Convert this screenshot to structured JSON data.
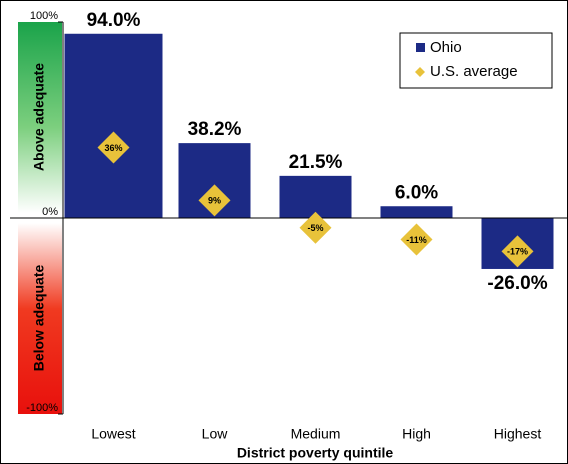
{
  "chart_data": {
    "type": "bar",
    "categories": [
      "Lowest",
      "Low",
      "Medium",
      "High",
      "Highest"
    ],
    "series": [
      {
        "name": "Ohio",
        "color": "#1c2a85",
        "values": [
          94.0,
          38.2,
          21.5,
          6.0,
          -26.0
        ],
        "value_labels": [
          "94.0%",
          "38.2%",
          "21.5%",
          "6.0%",
          "-26.0%"
        ]
      },
      {
        "name": "U.S. average",
        "color": "#e8c23a",
        "values": [
          36,
          9,
          -5,
          -11,
          -17
        ],
        "value_labels": [
          "36%",
          "9%",
          "-5%",
          "-11%",
          "-17%"
        ]
      }
    ],
    "xlabel": "District poverty quintile",
    "annotations": [
      "Above adequate",
      "Below adequate"
    ],
    "ylim": [
      -100,
      100
    ],
    "yticks": [
      {
        "value": 100,
        "label": "100%"
      },
      {
        "value": 0,
        "label": "0%"
      },
      {
        "value": -100,
        "label": "-100%"
      }
    ],
    "legend": "upper right"
  }
}
